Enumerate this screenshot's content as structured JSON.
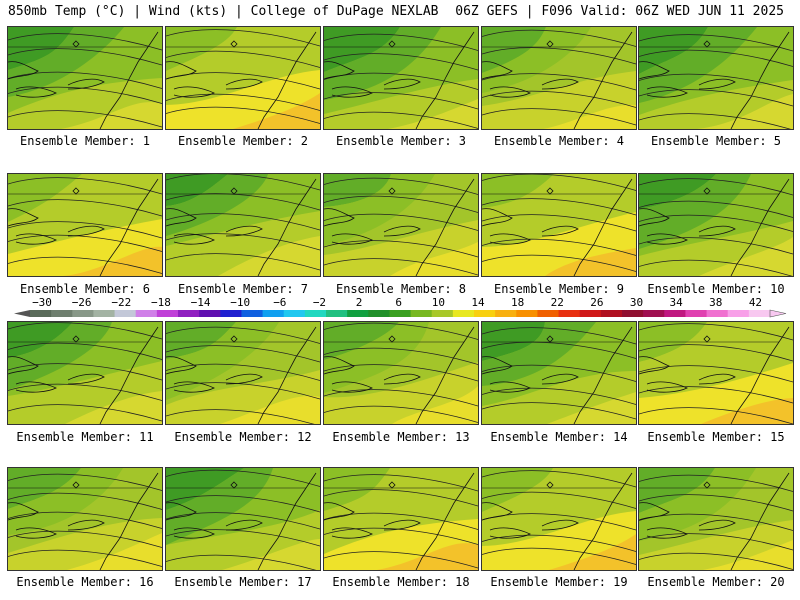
{
  "header": {
    "left_title": "850mb Temp (°C) | Wind (kts) | College of DuPage NEXLAB",
    "right_title": "06Z GEFS | F096 Valid: 06Z WED JUN 11 2025"
  },
  "members": [
    {
      "label": "Ensemble Member: 1",
      "palette": "g"
    },
    {
      "label": "Ensemble Member: 2",
      "palette": "w"
    },
    {
      "label": "Ensemble Member: 3",
      "palette": "g"
    },
    {
      "label": "Ensemble Member: 4",
      "palette": "m"
    },
    {
      "label": "Ensemble Member: 5",
      "palette": "g"
    },
    {
      "label": "Ensemble Member: 6",
      "palette": "w"
    },
    {
      "label": "Ensemble Member: 7",
      "palette": "g"
    },
    {
      "label": "Ensemble Member: 8",
      "palette": "m"
    },
    {
      "label": "Ensemble Member: 9",
      "palette": "w"
    },
    {
      "label": "Ensemble Member: 10",
      "palette": "g"
    },
    {
      "label": "Ensemble Member: 11",
      "palette": "g"
    },
    {
      "label": "Ensemble Member: 12",
      "palette": "m"
    },
    {
      "label": "Ensemble Member: 13",
      "palette": "m"
    },
    {
      "label": "Ensemble Member: 14",
      "palette": "g"
    },
    {
      "label": "Ensemble Member: 15",
      "palette": "w"
    },
    {
      "label": "Ensemble Member: 16",
      "palette": "m"
    },
    {
      "label": "Ensemble Member: 17",
      "palette": "g"
    },
    {
      "label": "Ensemble Member: 18",
      "palette": "w"
    },
    {
      "label": "Ensemble Member: 19",
      "palette": "w"
    },
    {
      "label": "Ensemble Member: 20",
      "palette": "m"
    }
  ],
  "colorbar": {
    "ticks": [
      "-30",
      "-26",
      "-22",
      "-18",
      "-14",
      "-10",
      "-6",
      "-2",
      "2",
      "6",
      "10",
      "14",
      "18",
      "22",
      "26",
      "30",
      "34",
      "38",
      "42"
    ],
    "colors": [
      "#5a6b5a",
      "#6f7f6f",
      "#889888",
      "#a3b3a3",
      "#c3c8d8",
      "#d080e8",
      "#c040d8",
      "#9020c0",
      "#6010b0",
      "#2020d0",
      "#1060e0",
      "#10a0f0",
      "#20c8f0",
      "#20d8c0",
      "#20c080",
      "#10a040",
      "#20902a",
      "#3aa020",
      "#78b820",
      "#a8c828",
      "#e8e820",
      "#f8d010",
      "#f8b010",
      "#f89000",
      "#f06000",
      "#e83010",
      "#d01818",
      "#b01020",
      "#901030",
      "#a01050",
      "#c01880",
      "#e040b0",
      "#f070d0",
      "#f8a0e8",
      "#f8c8f0"
    ]
  },
  "palettes": {
    "g": {
      "base": "#8cbf26",
      "zones": [
        "#3f9b24",
        "#62ad28",
        "#8cbf26",
        "#b4cc2a",
        "#d6d830"
      ]
    },
    "m": {
      "base": "#a3c52a",
      "zones": [
        "#62ad28",
        "#8cbf26",
        "#a3c52a",
        "#c8d22c",
        "#e8de2c"
      ]
    },
    "w": {
      "base": "#b4cc2a",
      "zones": [
        "#8cbf26",
        "#b4cc2a",
        "#d6d830",
        "#eee22a",
        "#f3c22a"
      ]
    }
  }
}
